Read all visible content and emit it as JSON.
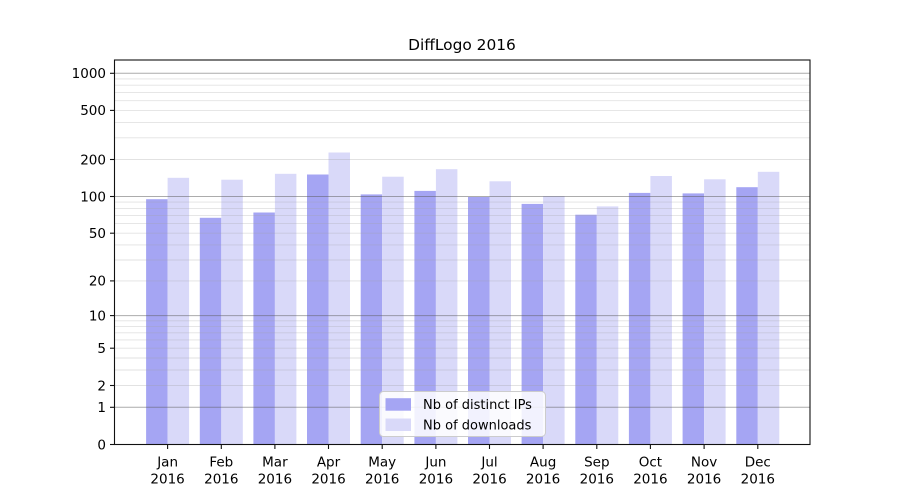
{
  "figure": {
    "background": "#ffffff"
  },
  "chart_data": {
    "type": "bar",
    "title": "DiffLogo 2016",
    "categories": [
      "Jan",
      "Feb",
      "Mar",
      "Apr",
      "May",
      "Jun",
      "Jul",
      "Aug",
      "Sep",
      "Oct",
      "Nov",
      "Dec"
    ],
    "x_tick_second_line": "2016",
    "series": [
      {
        "name": "Nb of distinct IPs",
        "color": "#a5a5f3",
        "values": [
          95,
          67,
          74,
          151,
          104,
          111,
          99,
          87,
          71,
          107,
          106,
          119
        ]
      },
      {
        "name": "Nb of downloads",
        "color": "#d9d9f9",
        "values": [
          142,
          137,
          153,
          228,
          145,
          167,
          133,
          101,
          83,
          147,
          138,
          159
        ]
      }
    ],
    "xlabel": "",
    "ylabel": "",
    "yscale": "log10(value+1)",
    "yticks": [
      0,
      1,
      2,
      5,
      10,
      20,
      50,
      100,
      200,
      500,
      1000
    ],
    "ylim": [
      0,
      1280
    ],
    "grid": true,
    "legend": {
      "position": "bottom-center"
    },
    "colors": {
      "axis": "#111111",
      "text": "#000000",
      "grid_major": "#adadad",
      "grid_minor": "#e3e3e3",
      "legend_border": "#cccccc",
      "legend_background": "#ffffff"
    }
  }
}
